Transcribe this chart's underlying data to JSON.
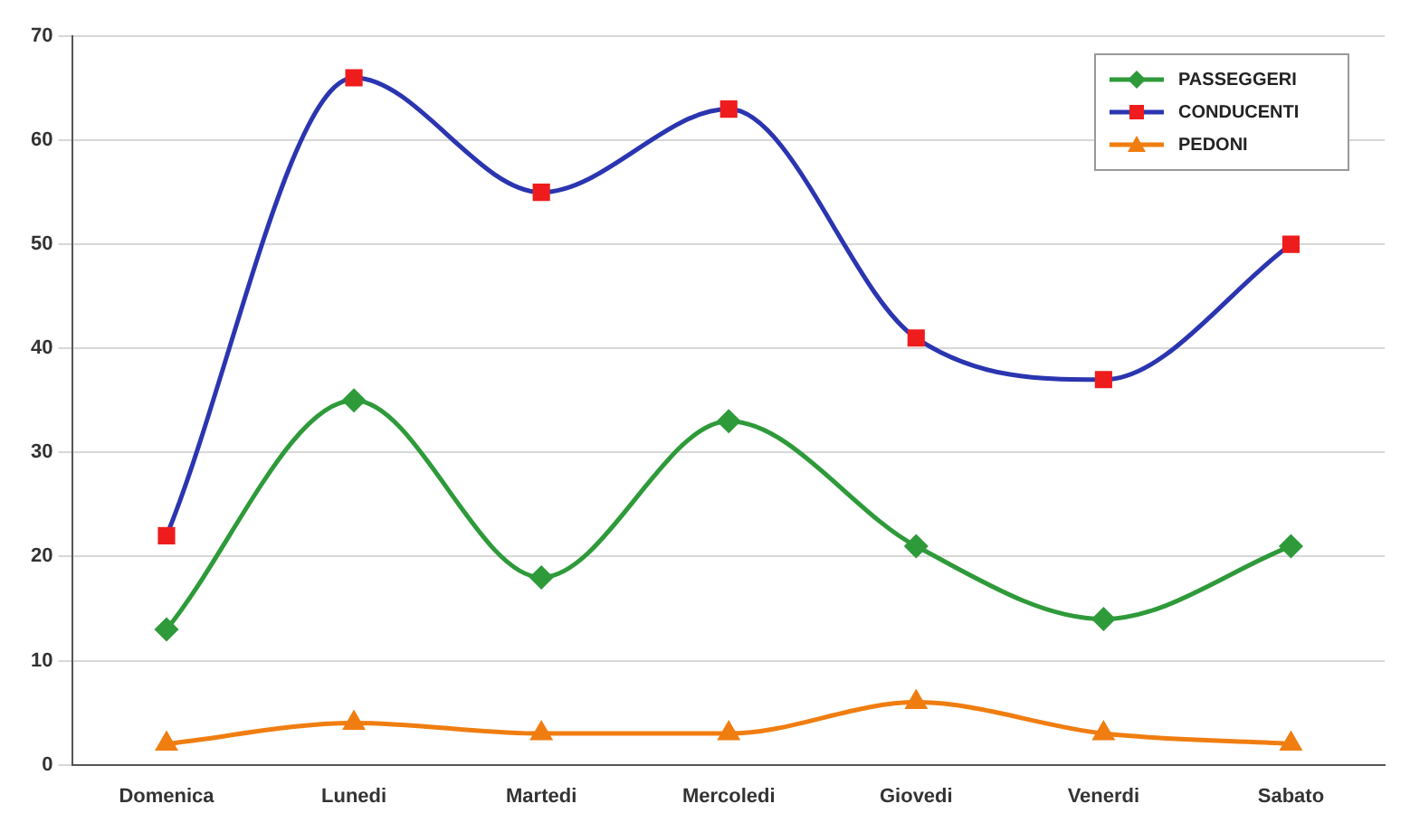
{
  "chart_data": {
    "type": "line",
    "categories": [
      "Domenica",
      "Lunedi",
      "Martedi",
      "Mercoledi",
      "Giovedi",
      "Venerdi",
      "Sabato"
    ],
    "series": [
      {
        "name": "PASSEGGERI",
        "color": "#2e9a3a",
        "marker": "diamond",
        "values": [
          13,
          35,
          18,
          33,
          21,
          14,
          21
        ]
      },
      {
        "name": "CONDUCENTI",
        "color": "#2b35b0",
        "marker": "square",
        "values": [
          22,
          66,
          55,
          63,
          41,
          37,
          50
        ]
      },
      {
        "name": "PEDONI",
        "color": "#f07d10",
        "marker": "triangle",
        "values": [
          2,
          4,
          3,
          3,
          6,
          3,
          2
        ]
      }
    ],
    "ylim": [
      0,
      70
    ],
    "yticks": [
      0,
      10,
      20,
      30,
      40,
      50,
      60,
      70
    ],
    "grid": "y",
    "legend": "top right",
    "line_style": "solid"
  }
}
